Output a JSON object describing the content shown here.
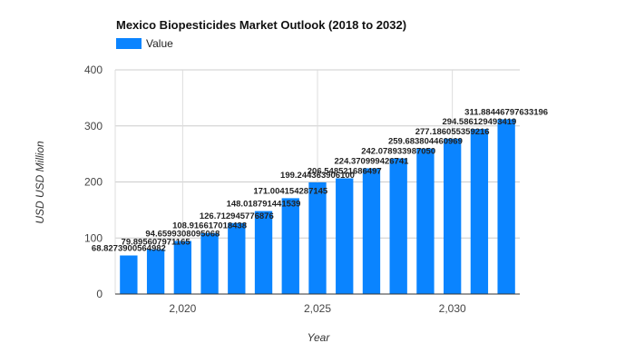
{
  "chart_data": {
    "type": "bar",
    "title": "Mexico Biopesticides Market Outlook (2018 to 2032)",
    "xlabel": "Year",
    "ylabel": "USD USD Million",
    "ylim": [
      0,
      400
    ],
    "yticks": [
      0,
      100,
      200,
      300,
      400
    ],
    "xticks": [
      {
        "value": 2020,
        "label": "2,020"
      },
      {
        "value": 2025,
        "label": "2,025"
      },
      {
        "value": 2030,
        "label": "2,030"
      }
    ],
    "legend": {
      "position": "top-left",
      "entries": [
        "Value"
      ]
    },
    "grid": true,
    "bar_color": "#0a84ff",
    "categories": [
      2018,
      2019,
      2020,
      2021,
      2022,
      2023,
      2024,
      2025,
      2026,
      2027,
      2028,
      2029,
      2030,
      2031,
      2032
    ],
    "series": [
      {
        "name": "Value",
        "values": [
          68.8273900564982,
          79.895607971165,
          94.6599308095068,
          108.916617018438,
          126.712945776876,
          148.018791441539,
          171.004154287145,
          199.2443639061,
          206.548521686497,
          224.370999426741,
          242.07893398705,
          259.683804460969,
          277.186055359216,
          294.586129493419,
          311.88446797633196
        ],
        "labels": [
          "68.8273900564982",
          "79.895607971165",
          "94.6599308095068",
          "108.916617018438",
          "126.712945776876",
          "148.018791441539",
          "171.004154287145",
          "199.244363906100",
          "206.548521686497",
          "224.370999426741",
          "242.078933987050",
          "259.683804460969",
          "277.186055359216",
          "294.586129493419",
          "311.88446797633196"
        ]
      }
    ]
  }
}
